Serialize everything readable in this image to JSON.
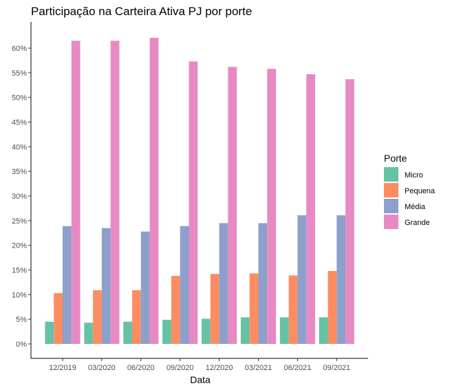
{
  "chart_data": {
    "type": "bar",
    "title": "Participação na Carteira Ativa PJ por porte",
    "xlabel": "Data",
    "ylabel": "",
    "categories": [
      "12/2019",
      "03/2020",
      "06/2020",
      "09/2020",
      "12/2020",
      "03/2021",
      "06/2021",
      "09/2021"
    ],
    "series": [
      {
        "name": "Micro",
        "color": "#66C2A5",
        "values": [
          4.5,
          4.3,
          4.5,
          4.9,
          5.1,
          5.4,
          5.4,
          5.4
        ]
      },
      {
        "name": "Pequena",
        "color": "#FC8D62",
        "values": [
          10.3,
          10.9,
          10.9,
          13.8,
          14.2,
          14.3,
          13.9,
          14.8
        ]
      },
      {
        "name": "Média",
        "color": "#8DA0CB",
        "values": [
          23.9,
          23.5,
          22.8,
          23.9,
          24.5,
          24.5,
          26.1,
          26.1
        ]
      },
      {
        "name": "Grande",
        "color": "#E78AC3",
        "values": [
          61.5,
          61.5,
          62.1,
          57.3,
          56.2,
          55.8,
          54.7,
          53.7
        ]
      }
    ],
    "ylim": [
      0,
      64
    ],
    "yticks": [
      0,
      5,
      10,
      15,
      20,
      25,
      30,
      35,
      40,
      45,
      50,
      55,
      60
    ],
    "ytick_labels": [
      "0%",
      "5%",
      "10%",
      "15%",
      "20%",
      "25%",
      "30%",
      "35%",
      "40%",
      "45%",
      "50%",
      "55%",
      "60%"
    ],
    "legend_title": "Porte",
    "legend_position": "right",
    "grid": false
  }
}
